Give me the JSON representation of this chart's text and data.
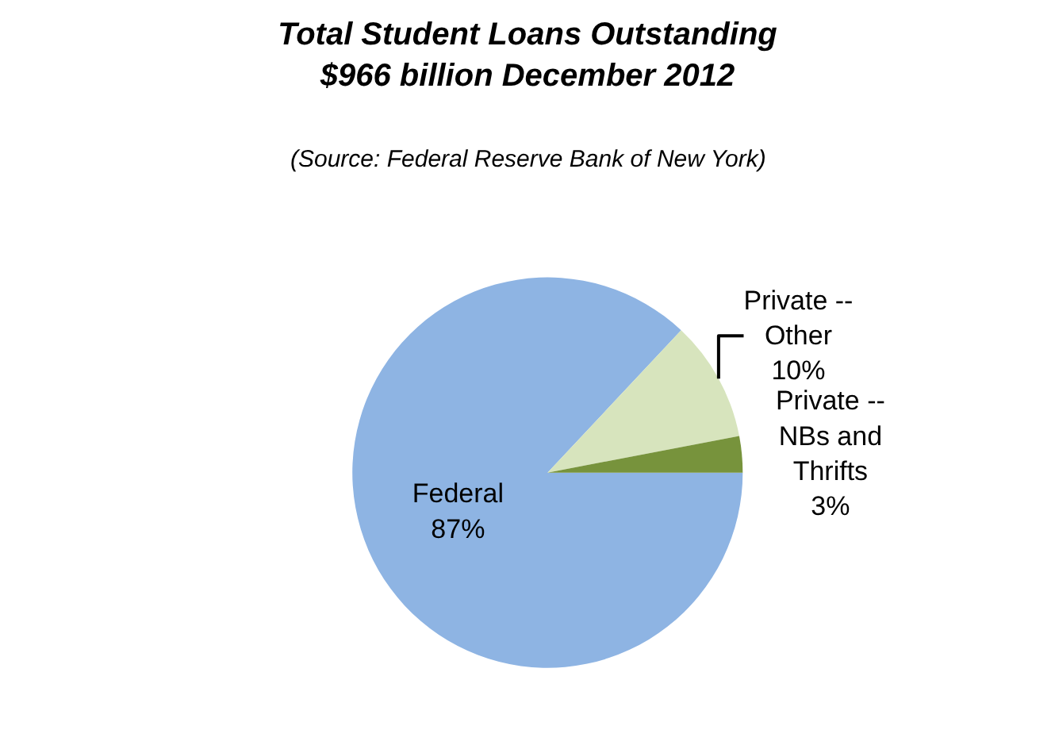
{
  "chart_data": {
    "type": "pie",
    "title": "Total Student Loans Outstanding\n$966 billion December 2012",
    "subtitle": "(Source: Federal Reserve Bank of New York)",
    "categories": [
      "Federal",
      "Private -- Other",
      "Private -- NBs and Thrifts"
    ],
    "values": [
      87,
      10,
      3
    ],
    "value_labels": [
      "87%",
      "10%",
      "3%"
    ],
    "colors": [
      "#8eb4e3",
      "#d7e4bd",
      "#77933c"
    ],
    "legend": false
  }
}
